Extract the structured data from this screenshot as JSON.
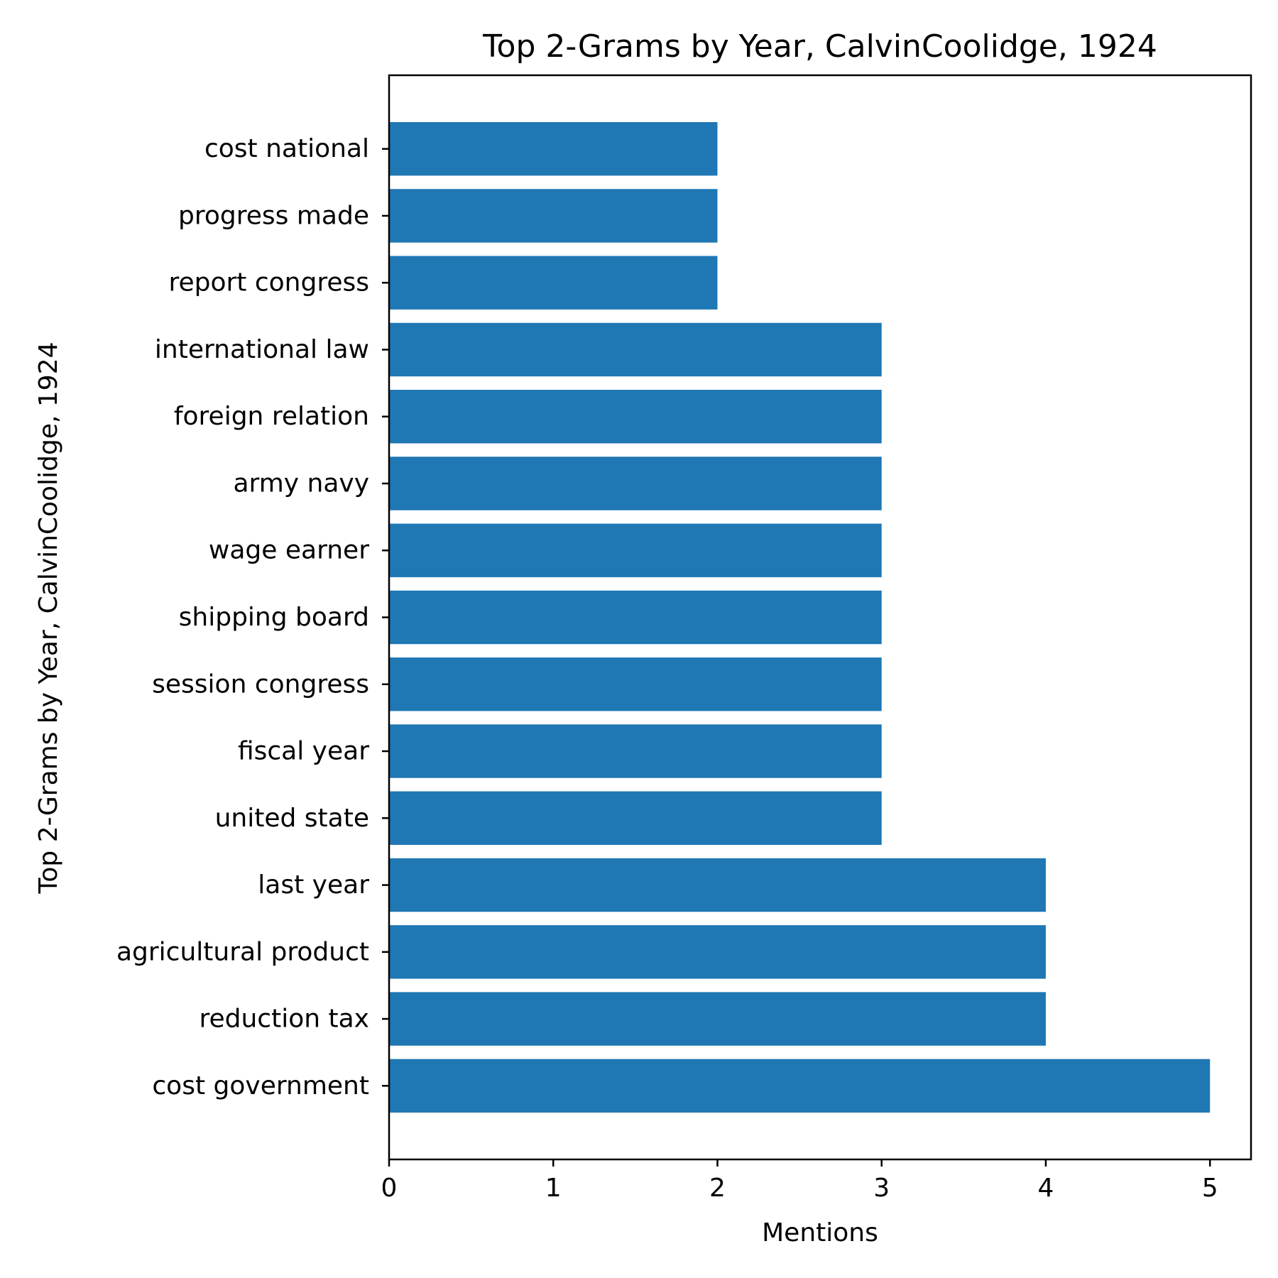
{
  "chart_data": {
    "type": "bar",
    "orientation": "horizontal",
    "title": "Top 2-Grams by Year, CalvinCoolidge, 1924",
    "xlabel": "Mentions",
    "ylabel": "Top 2-Grams by Year, CalvinCoolidge, 1924",
    "categories": [
      "cost government",
      "reduction tax",
      "agricultural product",
      "last year",
      "united state",
      "fiscal year",
      "session congress",
      "shipping board",
      "wage earner",
      "army navy",
      "foreign relation",
      "international law",
      "report congress",
      "progress made",
      "cost national"
    ],
    "values": [
      5,
      4,
      4,
      4,
      3,
      3,
      3,
      3,
      3,
      3,
      3,
      3,
      2,
      2,
      2
    ],
    "xlim": [
      0,
      5.25
    ],
    "xticks": [
      0,
      1,
      2,
      3,
      4,
      5
    ],
    "grid": false,
    "bar_color": "#1f77b4"
  }
}
